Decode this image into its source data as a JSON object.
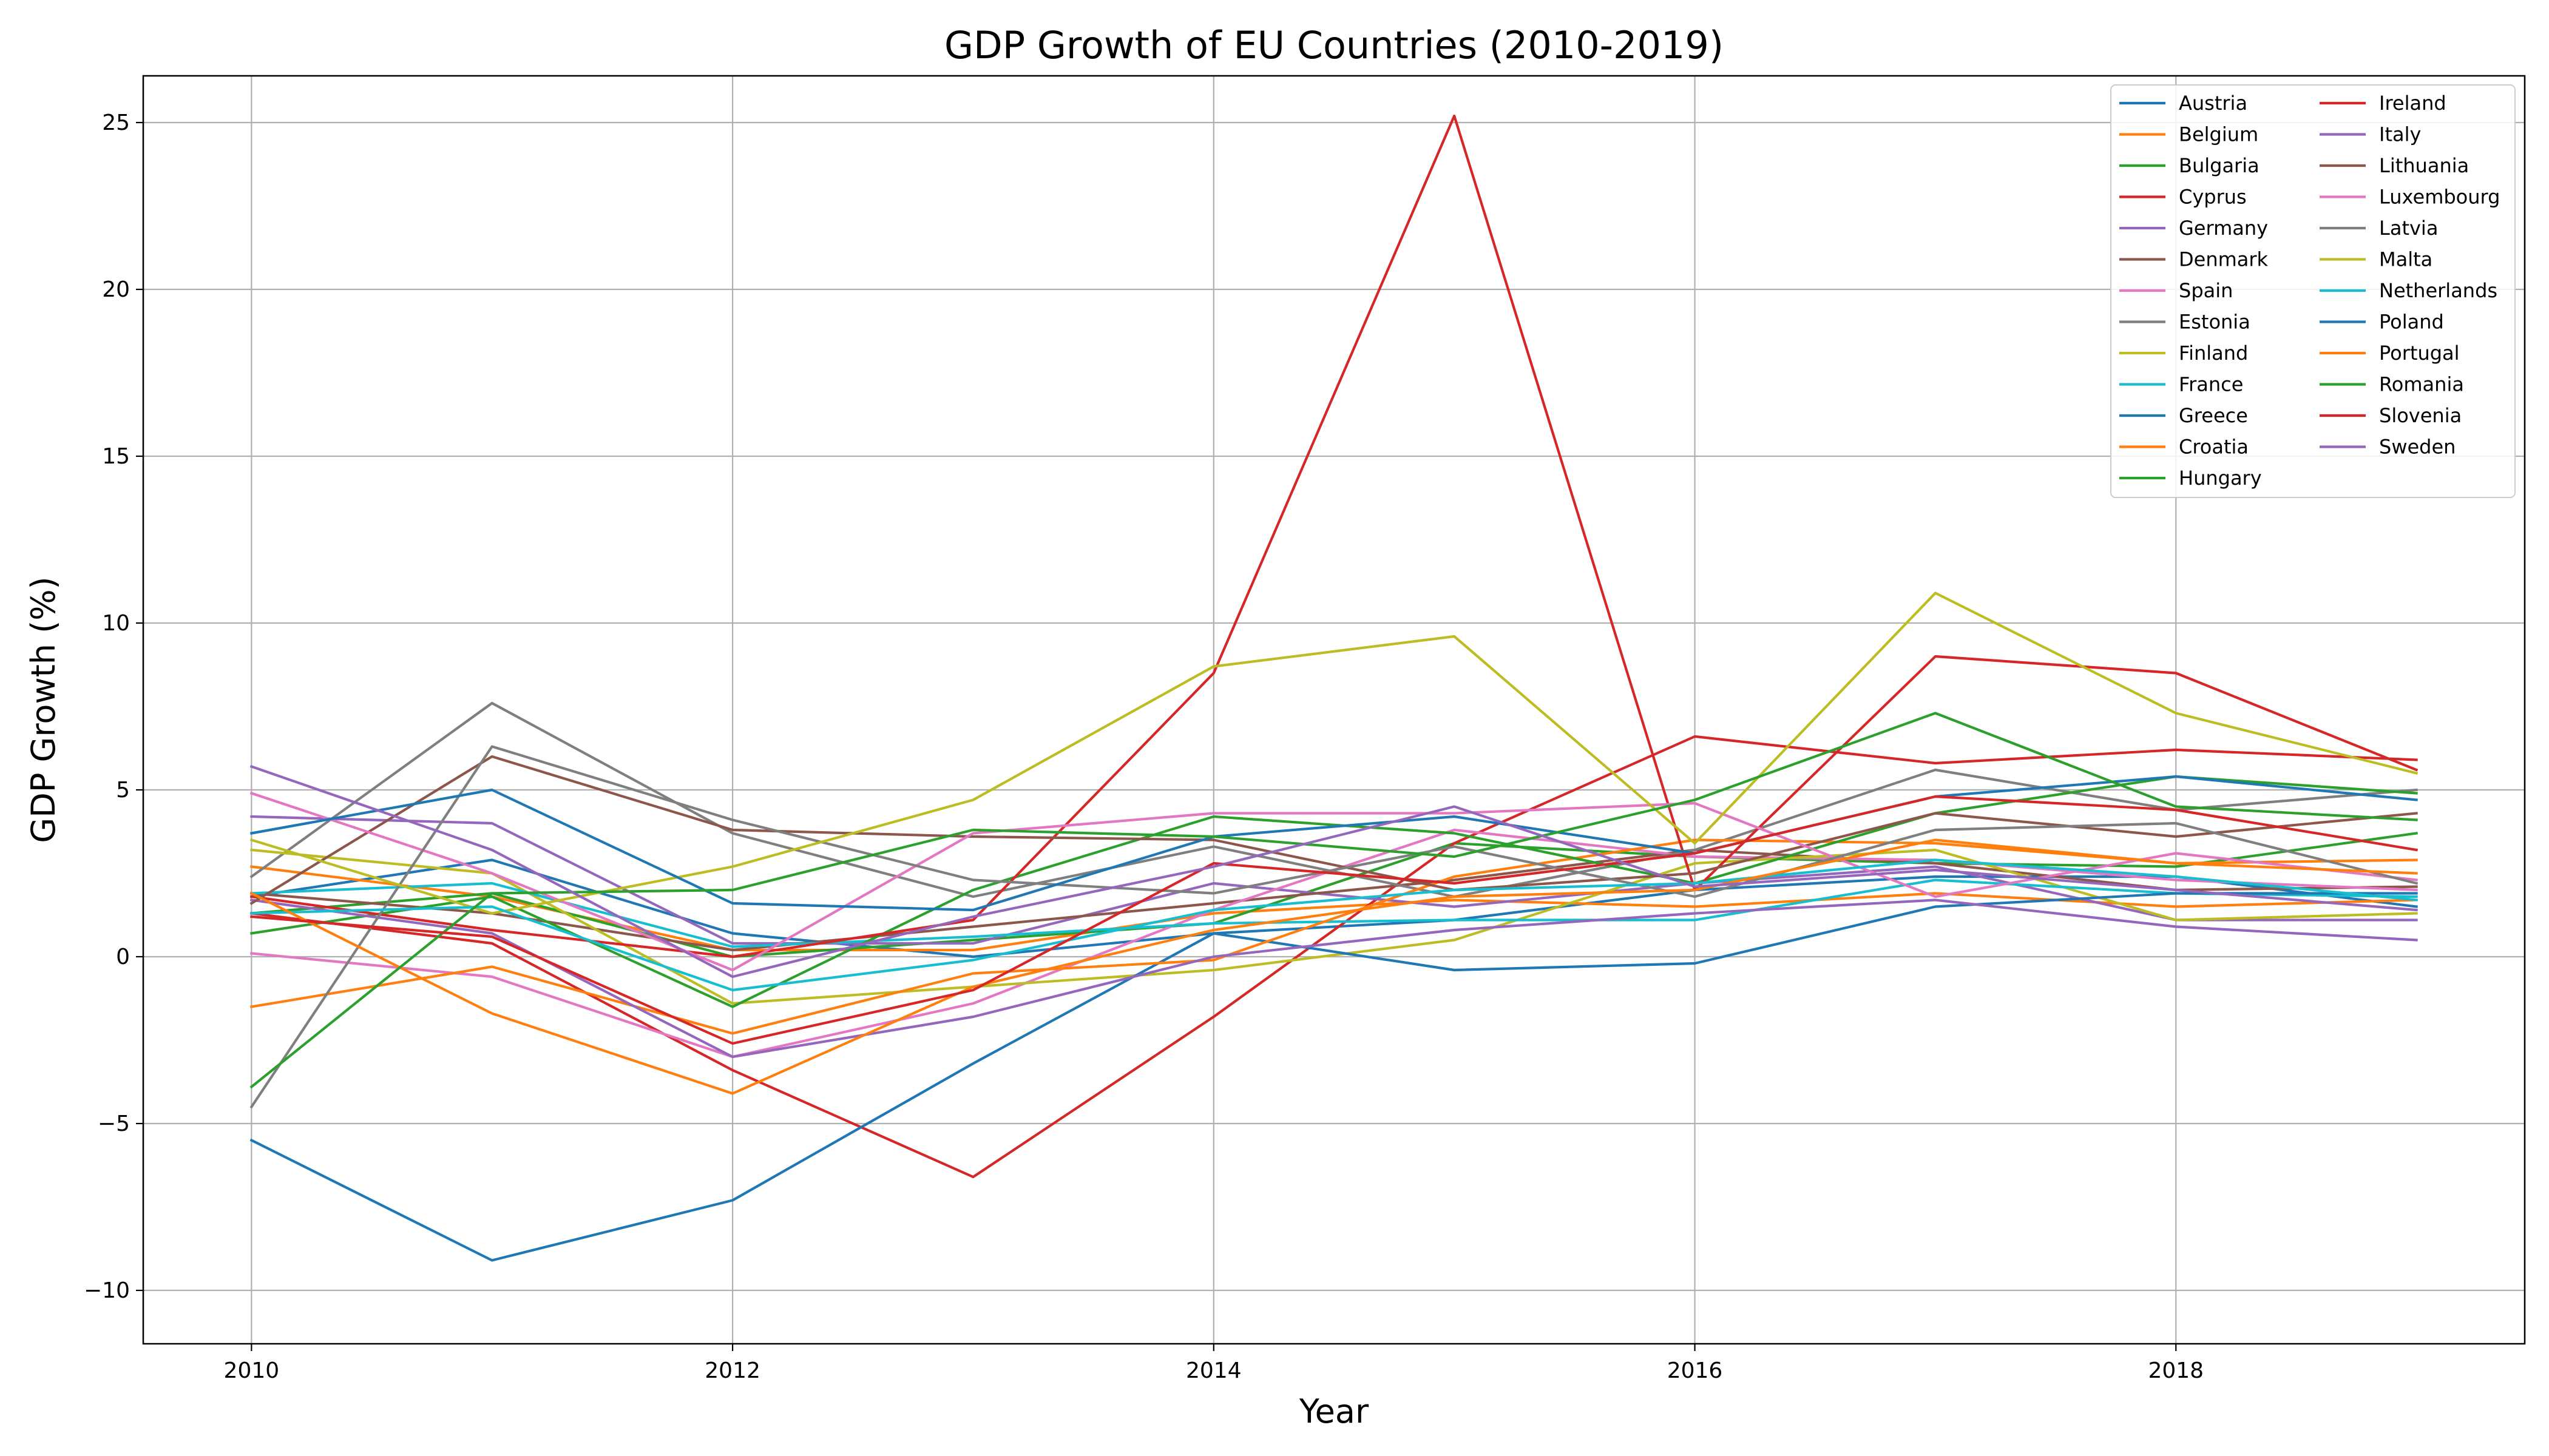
{
  "chart_data": {
    "type": "line",
    "title": "GDP Growth of EU Countries (2010-2019)",
    "xlabel": "Year",
    "ylabel": "GDP Growth (%)",
    "x": [
      2010,
      2011,
      2012,
      2013,
      2014,
      2015,
      2016,
      2017,
      2018,
      2019
    ],
    "xlim": [
      2009.55,
      2019.45
    ],
    "ylim": [
      -11.6,
      26.4
    ],
    "xticks": [
      2010,
      2012,
      2014,
      2016,
      2018
    ],
    "yticks": [
      -10,
      -5,
      0,
      5,
      10,
      15,
      20,
      25
    ],
    "ytick_labels": [
      "−10",
      "−5",
      "0",
      "5",
      "10",
      "15",
      "20",
      "25"
    ],
    "grid": true,
    "legend_position": "top-right",
    "legend_columns": 2,
    "series": [
      {
        "name": "Austria",
        "color": "#1f77b4",
        "values": [
          1.8,
          2.9,
          0.7,
          0.0,
          0.7,
          1.1,
          2.0,
          2.4,
          2.4,
          1.5
        ]
      },
      {
        "name": "Belgium",
        "color": "#ff7f0e",
        "values": [
          2.7,
          1.8,
          0.2,
          0.2,
          1.3,
          1.7,
          1.5,
          1.9,
          1.5,
          1.7
        ]
      },
      {
        "name": "Bulgaria",
        "color": "#2ca02c",
        "values": [
          1.3,
          1.9,
          0.0,
          0.5,
          1.0,
          3.4,
          3.0,
          2.8,
          2.7,
          3.7
        ]
      },
      {
        "name": "Cyprus",
        "color": "#d62728",
        "values": [
          1.3,
          0.4,
          -3.4,
          -6.6,
          -1.8,
          3.4,
          6.6,
          5.8,
          6.2,
          5.9
        ]
      },
      {
        "name": "Germany",
        "color": "#9467bd",
        "values": [
          4.2,
          4.0,
          0.4,
          0.4,
          2.2,
          1.5,
          2.2,
          2.7,
          1.1,
          1.1
        ]
      },
      {
        "name": "Denmark",
        "color": "#8c564b",
        "values": [
          1.9,
          1.3,
          0.2,
          0.9,
          1.6,
          2.3,
          3.2,
          2.8,
          2.0,
          2.1
        ]
      },
      {
        "name": "Spain",
        "color": "#e377c2",
        "values": [
          0.1,
          -0.6,
          -3.0,
          -1.4,
          1.4,
          3.8,
          3.0,
          2.9,
          2.3,
          2.0
        ]
      },
      {
        "name": "Estonia",
        "color": "#7f7f7f",
        "values": [
          2.4,
          7.6,
          3.7,
          1.8,
          3.3,
          1.8,
          3.2,
          5.6,
          4.4,
          5.0
        ]
      },
      {
        "name": "Finland",
        "color": "#bcbd22",
        "values": [
          3.2,
          2.5,
          -1.4,
          -0.9,
          -0.4,
          0.5,
          2.8,
          3.2,
          1.1,
          1.3
        ]
      },
      {
        "name": "France",
        "color": "#17becf",
        "values": [
          1.9,
          2.2,
          0.3,
          0.6,
          1.0,
          1.1,
          1.1,
          2.3,
          1.9,
          1.8
        ]
      },
      {
        "name": "Greece",
        "color": "#1f77b4",
        "values": [
          -5.5,
          -9.1,
          -7.3,
          -3.2,
          0.7,
          -0.4,
          -0.2,
          1.5,
          1.9,
          1.9
        ]
      },
      {
        "name": "Croatia",
        "color": "#ff7f0e",
        "values": [
          -1.5,
          -0.3,
          -2.3,
          -0.5,
          -0.1,
          2.4,
          3.5,
          3.4,
          2.8,
          2.9
        ]
      },
      {
        "name": "Hungary",
        "color": "#2ca02c",
        "values": [
          0.7,
          1.8,
          -1.5,
          2.0,
          4.2,
          3.7,
          2.2,
          4.3,
          5.4,
          4.9
        ]
      },
      {
        "name": "Ireland",
        "color": "#d62728",
        "values": [
          1.8,
          0.8,
          0.0,
          1.1,
          8.5,
          25.2,
          2.0,
          9.0,
          8.5,
          5.6
        ]
      },
      {
        "name": "Italy",
        "color": "#9467bd",
        "values": [
          1.7,
          0.7,
          -3.0,
          -1.8,
          0.0,
          0.8,
          1.3,
          1.7,
          0.9,
          0.5
        ]
      },
      {
        "name": "Lithuania",
        "color": "#8c564b",
        "values": [
          1.6,
          6.0,
          3.8,
          3.6,
          3.5,
          2.0,
          2.5,
          4.3,
          3.6,
          4.3
        ]
      },
      {
        "name": "Luxembourg",
        "color": "#e377c2",
        "values": [
          4.9,
          2.5,
          -0.4,
          3.7,
          4.3,
          4.3,
          4.6,
          1.8,
          3.1,
          2.3
        ]
      },
      {
        "name": "Latvia",
        "color": "#7f7f7f",
        "values": [
          -4.5,
          6.3,
          4.1,
          2.3,
          1.9,
          3.3,
          1.8,
          3.8,
          4.0,
          2.2
        ]
      },
      {
        "name": "Malta",
        "color": "#bcbd22",
        "values": [
          3.5,
          1.3,
          2.7,
          4.7,
          8.7,
          9.6,
          3.4,
          10.9,
          7.3,
          5.5
        ]
      },
      {
        "name": "Netherlands",
        "color": "#17becf",
        "values": [
          1.3,
          1.5,
          -1.0,
          -0.1,
          1.4,
          2.0,
          2.2,
          2.9,
          2.4,
          1.7
        ]
      },
      {
        "name": "Poland",
        "color": "#1f77b4",
        "values": [
          3.7,
          5.0,
          1.6,
          1.4,
          3.6,
          4.2,
          3.1,
          4.8,
          5.4,
          4.7
        ]
      },
      {
        "name": "Portugal",
        "color": "#ff7f0e",
        "values": [
          1.9,
          -1.7,
          -4.1,
          -0.9,
          0.8,
          1.8,
          2.0,
          3.5,
          2.8,
          2.5
        ]
      },
      {
        "name": "Romania",
        "color": "#2ca02c",
        "values": [
          -3.9,
          1.9,
          2.0,
          3.8,
          3.6,
          3.0,
          4.7,
          7.3,
          4.5,
          4.1
        ]
      },
      {
        "name": "Slovenia",
        "color": "#d62728",
        "values": [
          1.2,
          0.6,
          -2.6,
          -1.0,
          2.8,
          2.2,
          3.1,
          4.8,
          4.4,
          3.2
        ]
      },
      {
        "name": "Sweden",
        "color": "#9467bd",
        "values": [
          5.7,
          3.2,
          -0.6,
          1.2,
          2.7,
          4.5,
          2.1,
          2.6,
          2.0,
          1.4
        ]
      }
    ]
  }
}
